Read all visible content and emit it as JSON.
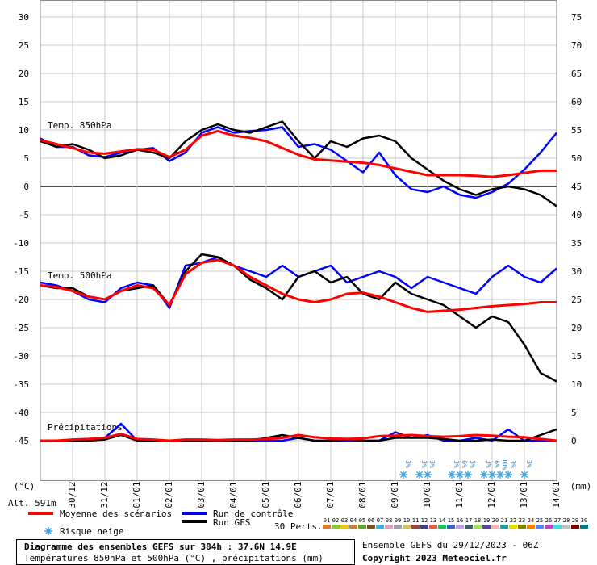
{
  "chart_data": {
    "type": "line",
    "title": "Diagramme des ensembles GEFS sur 384h : 37.6N 14.9E",
    "subtitle": "Températures 850hPa et 500hPa (°C) , précipitations (mm)",
    "run_info": "Ensemble GEFS du 29/12/2023 - 06Z",
    "copyright": "Copyright 2023 Meteociel.fr",
    "y_label": "(°C)",
    "y2_label": "(mm)",
    "altitude": "Alt. 591m",
    "annotations": [
      "Temp. 850hPa",
      "Temp. 500hPa",
      "Précipitations"
    ],
    "snow_legend": "Risque neige",
    "perturbations_label": "30 Perts.",
    "grid": true,
    "xlim": [
      0,
      384
    ],
    "ylim": [
      -52,
      33
    ],
    "y2lim": [
      -7,
      78
    ],
    "yticks": [
      -45,
      -40,
      -35,
      -30,
      -25,
      -20,
      -15,
      -10,
      -5,
      0,
      5,
      10,
      15,
      20,
      25,
      30
    ],
    "y2ticks": [
      0,
      5,
      10,
      15,
      20,
      25,
      30,
      35,
      40,
      45,
      50,
      55,
      60,
      65,
      70,
      75
    ],
    "xticks": [
      {
        "value": 24,
        "label": "30/12"
      },
      {
        "value": 48,
        "label": "31/12"
      },
      {
        "value": 72,
        "label": "01/01"
      },
      {
        "value": 96,
        "label": "02/01"
      },
      {
        "value": 120,
        "label": "03/01"
      },
      {
        "value": 144,
        "label": "04/01"
      },
      {
        "value": 168,
        "label": "05/01"
      },
      {
        "value": 192,
        "label": "06/01"
      },
      {
        "value": 216,
        "label": "07/01"
      },
      {
        "value": 240,
        "label": "08/01"
      },
      {
        "value": 264,
        "label": "09/01"
      },
      {
        "value": 288,
        "label": "10/01"
      },
      {
        "value": 312,
        "label": "11/01"
      },
      {
        "value": 336,
        "label": "12/01"
      },
      {
        "value": 360,
        "label": "13/01"
      },
      {
        "value": 384,
        "label": "14/01"
      }
    ],
    "x": [
      0,
      12,
      24,
      36,
      48,
      60,
      72,
      84,
      96,
      108,
      120,
      132,
      144,
      156,
      168,
      180,
      192,
      204,
      216,
      228,
      240,
      252,
      264,
      276,
      288,
      300,
      312,
      324,
      336,
      348,
      360,
      372,
      384
    ],
    "series": [
      {
        "name": "Run de contrôle",
        "color": "#0000ff",
        "width": 2.5,
        "t850": [
          8.5,
          7,
          7,
          5.5,
          5.2,
          6,
          6.5,
          6.8,
          4.5,
          6,
          9.5,
          10.5,
          9.5,
          9.8,
          10,
          10.5,
          7,
          7.5,
          6.5,
          4.5,
          2.5,
          6,
          2,
          -0.5,
          -1,
          0,
          -1.5,
          -2,
          -1,
          0.5,
          3,
          6,
          9.5
        ],
        "t500": [
          -17,
          -17.5,
          -18.5,
          -20,
          -20.5,
          -18,
          -17,
          -17.5,
          -21.5,
          -14,
          -13.5,
          -12.5,
          -14,
          -15,
          -16,
          -14,
          -16,
          -15,
          -14,
          -17,
          -16,
          -15,
          -16,
          -18,
          -16,
          -17,
          -18,
          -19,
          -16,
          -14,
          -16,
          -17,
          -14.5
        ],
        "precip": [
          0,
          0,
          0,
          0,
          0.5,
          3,
          0,
          0,
          0,
          0,
          0,
          0,
          0,
          0,
          0,
          0,
          0.5,
          0,
          0,
          0,
          0,
          0,
          1.5,
          0.5,
          1,
          0,
          0,
          0.5,
          0,
          2,
          0,
          0,
          0
        ]
      },
      {
        "name": "Run GFS",
        "color": "#000000",
        "width": 2.5,
        "t850": [
          8,
          7,
          7.5,
          6.5,
          5,
          5.5,
          6.5,
          6,
          5,
          8,
          10,
          11,
          10,
          9.5,
          10.5,
          11.5,
          8,
          5,
          8,
          7,
          8.5,
          9,
          8,
          5,
          3,
          1,
          -0.5,
          -1.5,
          -0.5,
          0,
          -0.5,
          -1.5,
          -3.5
        ],
        "t500": [
          -17.5,
          -18,
          -18,
          -19.5,
          -20,
          -18.5,
          -18,
          -17.5,
          -21,
          -15,
          -12,
          -12.5,
          -14,
          -16.5,
          -18,
          -20,
          -16,
          -15,
          -17,
          -16,
          -19,
          -20,
          -17,
          -19,
          -20,
          -21,
          -23,
          -25,
          -23,
          -24,
          -28,
          -33,
          -34.5
        ],
        "precip": [
          0,
          0,
          0,
          0,
          0.2,
          1,
          0,
          0,
          0,
          0,
          0,
          0,
          0,
          0,
          0.5,
          1,
          0.5,
          0,
          0,
          0.2,
          0,
          0,
          0.5,
          0.5,
          0.5,
          0.3,
          0,
          0,
          0.2,
          0,
          0,
          1,
          2
        ]
      },
      {
        "name": "Moyenne des scénarios",
        "color": "#ff0000",
        "width": 3,
        "t850": [
          8.2,
          7.5,
          6.8,
          6,
          5.8,
          6.2,
          6.6,
          6.5,
          5.2,
          6.5,
          9,
          9.8,
          9,
          8.6,
          8,
          6.8,
          5.6,
          4.8,
          4.6,
          4.4,
          4.2,
          3.8,
          3.2,
          2.6,
          2,
          2,
          2,
          1.9,
          1.7,
          2,
          2.4,
          2.8,
          2.8
        ],
        "t500": [
          -17.5,
          -17.8,
          -18.5,
          -19.5,
          -20,
          -18.5,
          -17.5,
          -18,
          -21,
          -15.5,
          -13.5,
          -13,
          -14,
          -16,
          -17.5,
          -19,
          -20,
          -20.5,
          -20,
          -19,
          -18.8,
          -19.5,
          -20.5,
          -21.5,
          -22.2,
          -22,
          -21.8,
          -21.5,
          -21.2,
          -21,
          -20.8,
          -20.5,
          -20.5
        ],
        "precip": [
          0,
          0,
          0.2,
          0.3,
          0.5,
          1.2,
          0.3,
          0.2,
          0,
          0.2,
          0.2,
          0.1,
          0.2,
          0.2,
          0.3,
          0.5,
          1,
          0.6,
          0.4,
          0.3,
          0.4,
          0.8,
          0.9,
          1,
          0.8,
          0.7,
          0.8,
          1,
          0.9,
          0.7,
          0.6,
          0.3,
          0
        ]
      }
    ],
    "snow_risk": {
      "x": [
        270,
        282,
        288,
        306,
        312,
        318,
        330,
        336,
        342,
        348,
        360
      ],
      "values": [
        3,
        3,
        3,
        3,
        6,
        3,
        3,
        6,
        10,
        3,
        3
      ],
      "value_labels": [
        "3%",
        "3%",
        "3%",
        "3%",
        "6%",
        "3%",
        "3%",
        "6%",
        "10%",
        "3%",
        "3%"
      ]
    },
    "perturbations": [
      {
        "name": "01",
        "color": "#e07a2e"
      },
      {
        "name": "02",
        "color": "#8cc63f"
      },
      {
        "name": "03",
        "color": "#f0c020"
      },
      {
        "name": "04",
        "color": "#c08040"
      },
      {
        "name": "05",
        "color": "#60a030"
      },
      {
        "name": "06",
        "color": "#805020"
      },
      {
        "name": "07",
        "color": "#40b0e0"
      },
      {
        "name": "08",
        "color": "#e0a0c0"
      },
      {
        "name": "09",
        "color": "#a0a0a0"
      },
      {
        "name": "10",
        "color": "#d0c060"
      },
      {
        "name": "11",
        "color": "#a04040"
      },
      {
        "name": "12",
        "color": "#404080"
      },
      {
        "name": "13",
        "color": "#e06040"
      },
      {
        "name": "14",
        "color": "#20c060"
      },
      {
        "name": "15",
        "color": "#4060c0"
      },
      {
        "name": "16",
        "color": "#c0a0e0"
      },
      {
        "name": "17",
        "color": "#406060"
      },
      {
        "name": "18",
        "color": "#a0e060"
      },
      {
        "name": "19",
        "color": "#6040a0"
      },
      {
        "name": "20",
        "color": "#ffb0b0"
      },
      {
        "name": "21",
        "color": "#20a0a0"
      },
      {
        "name": "22",
        "color": "#e0e000"
      },
      {
        "name": "23",
        "color": "#808000"
      },
      {
        "name": "24",
        "color": "#ff8000"
      },
      {
        "name": "25",
        "color": "#6080ff"
      },
      {
        "name": "26",
        "color": "#c040c0"
      },
      {
        "name": "27",
        "color": "#40e0e0"
      },
      {
        "name": "28",
        "color": "#c0c0c0"
      },
      {
        "name": "29",
        "color": "#800000"
      },
      {
        "name": "30",
        "color": "#008080"
      }
    ]
  }
}
